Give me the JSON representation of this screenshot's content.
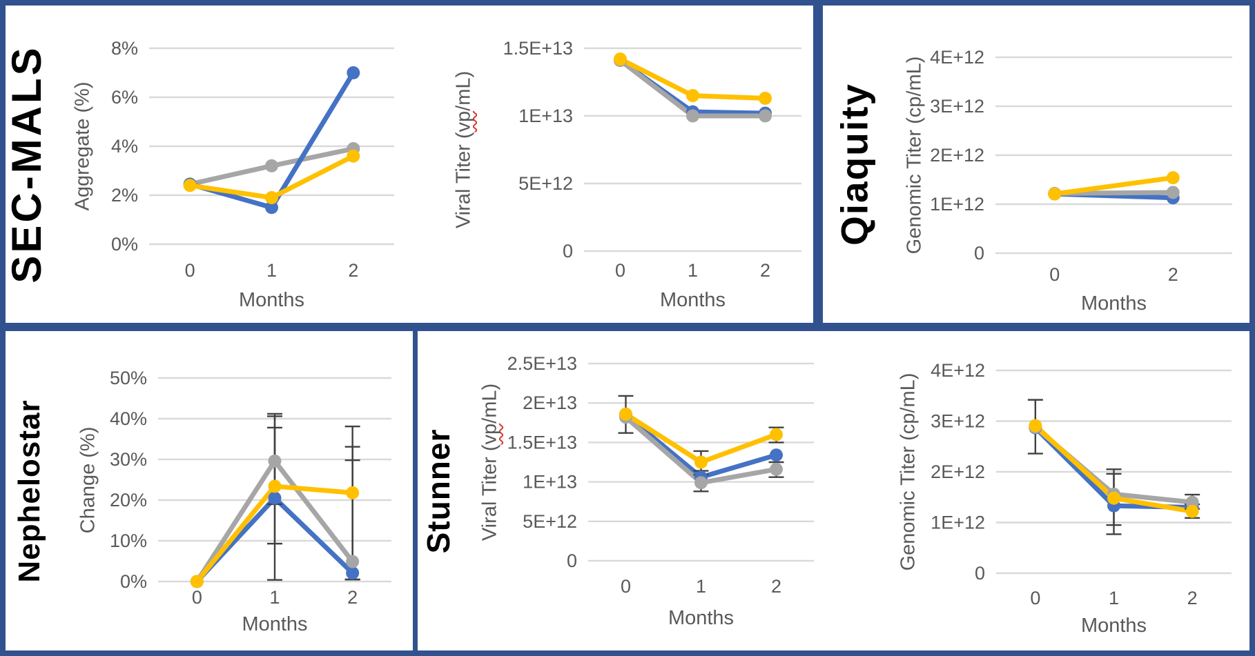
{
  "figure": {
    "description_visible_text_only": "Four bordered panels of stability line charts over months",
    "months_axis_label": "Months"
  },
  "colors": {
    "border_blue": "#31528F",
    "panel_background": "#FFFFFF",
    "series_blue": "#4472C4",
    "series_gray": "#A6A6A6",
    "series_yellow": "#FFC000",
    "gridline": "#D9D9D9",
    "axis_text": "#595959",
    "error_bar": "#404040",
    "panel_title_text": "#000000",
    "spellcheck_squiggle_red": "#D83A2E"
  },
  "panels": [
    {
      "title": "SEC-MALS"
    },
    {
      "title": "Qiaquity"
    },
    {
      "title": "Nephelostar"
    },
    {
      "title": "Stunner"
    }
  ],
  "chart_data": [
    {
      "id": "secmals-aggregate",
      "type": "line",
      "panel": "SEC-MALS",
      "xlabel": "Months",
      "ylabel": "Aggregate (%)",
      "x_categories": [
        "0",
        "1",
        "2"
      ],
      "ylim": [
        0,
        8
      ],
      "yticks": [
        {
          "value": 8,
          "label": "8%"
        },
        {
          "value": 6,
          "label": "6%"
        },
        {
          "value": 4,
          "label": "4%"
        },
        {
          "value": 2,
          "label": "2%"
        },
        {
          "value": 0,
          "label": "0%"
        }
      ],
      "grid": "horizontal",
      "legend": "none",
      "series": [
        {
          "name": "gray",
          "color": "#A6A6A6",
          "values": [
            2.45,
            3.2,
            3.9
          ]
        },
        {
          "name": "blue",
          "color": "#4472C4",
          "values": [
            2.45,
            1.5,
            7.0
          ]
        },
        {
          "name": "yellow",
          "color": "#FFC000",
          "values": [
            2.4,
            1.9,
            3.6
          ]
        }
      ]
    },
    {
      "id": "secmals-viral-titer",
      "type": "line",
      "panel": "SEC-MALS",
      "xlabel": "Months",
      "ylabel": "Viral Titer (vp/mL)",
      "ylabel_spellcheck_underline": "vp",
      "x_categories": [
        "0",
        "1",
        "2"
      ],
      "ylim": [
        0,
        15000000000000.0
      ],
      "yticks": [
        {
          "value": 15000000000000.0,
          "label": "1.5E+13"
        },
        {
          "value": 10000000000000.0,
          "label": "1E+13"
        },
        {
          "value": 5000000000000.0,
          "label": "5E+12"
        },
        {
          "value": 0,
          "label": "0"
        }
      ],
      "grid": "horizontal",
      "legend": "none",
      "series": [
        {
          "name": "blue",
          "color": "#4472C4",
          "values": [
            14100000000000.0,
            10300000000000.0,
            10200000000000.0
          ]
        },
        {
          "name": "gray",
          "color": "#A6A6A6",
          "values": [
            14100000000000.0,
            10000000000000.0,
            10000000000000.0
          ]
        },
        {
          "name": "yellow",
          "color": "#FFC000",
          "values": [
            14200000000000.0,
            11500000000000.0,
            11300000000000.0
          ]
        }
      ]
    },
    {
      "id": "qiaquity-genomic-titer",
      "type": "line",
      "panel": "Qiaquity",
      "xlabel": "Months",
      "ylabel": "Genomic Titer (cp/mL)",
      "x_categories": [
        "0",
        "2"
      ],
      "ylim": [
        0,
        4000000000000.0
      ],
      "yticks": [
        {
          "value": 4000000000000.0,
          "label": "4E+12"
        },
        {
          "value": 3000000000000.0,
          "label": "3E+12"
        },
        {
          "value": 2000000000000.0,
          "label": "2E+12"
        },
        {
          "value": 1000000000000.0,
          "label": "1E+12"
        },
        {
          "value": 0,
          "label": "0"
        }
      ],
      "grid": "horizontal",
      "legend": "none",
      "series": [
        {
          "name": "blue",
          "color": "#4472C4",
          "values": [
            1210000000000.0,
            1130000000000.0
          ]
        },
        {
          "name": "gray",
          "color": "#A6A6A6",
          "values": [
            1220000000000.0,
            1240000000000.0
          ]
        },
        {
          "name": "yellow",
          "color": "#FFC000",
          "values": [
            1210000000000.0,
            1540000000000.0
          ]
        }
      ]
    },
    {
      "id": "nephelostar-change",
      "type": "line",
      "panel": "Nephelostar",
      "xlabel": "Months",
      "ylabel": "Change (%)",
      "x_categories": [
        "0",
        "1",
        "2"
      ],
      "ylim": [
        0,
        50
      ],
      "yticks": [
        {
          "value": 50,
          "label": "50%"
        },
        {
          "value": 40,
          "label": "40%"
        },
        {
          "value": 30,
          "label": "30%"
        },
        {
          "value": 20,
          "label": "20%"
        },
        {
          "value": 10,
          "label": "10%"
        },
        {
          "value": 0,
          "label": "0%"
        }
      ],
      "grid": "horizontal",
      "legend": "none",
      "series": [
        {
          "name": "blue",
          "color": "#4472C4",
          "values": [
            0,
            20.5,
            2.1
          ],
          "error_bars": [
            null,
            [
              0.4,
              40.6
            ],
            [
              0.5,
              29.8
            ]
          ]
        },
        {
          "name": "gray",
          "color": "#A6A6A6",
          "values": [
            0,
            29.6,
            4.9
          ],
          "error_bars": [
            null,
            [
              19.0,
              41.2
            ],
            [
              0.5,
              38.1
            ]
          ]
        },
        {
          "name": "yellow",
          "color": "#FFC000",
          "values": [
            0,
            23.4,
            21.8
          ],
          "error_bars": [
            null,
            [
              9.3,
              37.8
            ],
            [
              0.5,
              33.1
            ]
          ]
        }
      ]
    },
    {
      "id": "stunner-viral-titer",
      "type": "line",
      "panel": "Stunner",
      "xlabel": "Months",
      "ylabel": "Viral Titer (vp/mL)",
      "ylabel_spellcheck_underline": "vp",
      "x_categories": [
        "0",
        "1",
        "2"
      ],
      "ylim": [
        0,
        25000000000000.0
      ],
      "yticks": [
        {
          "value": 25000000000000.0,
          "label": "2.5E+13"
        },
        {
          "value": 20000000000000.0,
          "label": "2E+13"
        },
        {
          "value": 15000000000000.0,
          "label": "1.5E+13"
        },
        {
          "value": 10000000000000.0,
          "label": "1E+13"
        },
        {
          "value": 5000000000000.0,
          "label": "5E+12"
        },
        {
          "value": 0,
          "label": "0"
        }
      ],
      "grid": "horizontal",
      "legend": "none",
      "series": [
        {
          "name": "blue",
          "color": "#4472C4",
          "values": [
            18500000000000.0,
            10600000000000.0,
            13400000000000.0
          ]
        },
        {
          "name": "gray",
          "color": "#A6A6A6",
          "values": [
            18200000000000.0,
            9900000000000.0,
            11600000000000.0
          ],
          "error_bars": [
            null,
            [
              8800000000000.0,
              10900000000000.0
            ],
            [
              10600000000000.0,
              12500000000000.0
            ]
          ]
        },
        {
          "name": "yellow",
          "color": "#FFC000",
          "values": [
            18600000000000.0,
            12500000000000.0,
            16000000000000.0
          ],
          "error_bars": [
            [
              16200000000000.0,
              20900000000000.0
            ],
            [
              11400000000000.0,
              13900000000000.0
            ],
            [
              15000000000000.0,
              16900000000000.0
            ]
          ]
        }
      ]
    },
    {
      "id": "stunner-genomic-titer",
      "type": "line",
      "panel": "Stunner",
      "xlabel": "Months",
      "ylabel": "Genomic Titer (cp/mL)",
      "x_categories": [
        "0",
        "1",
        "2"
      ],
      "ylim": [
        0,
        4000000000000.0
      ],
      "yticks": [
        {
          "value": 4000000000000.0,
          "label": "4E+12"
        },
        {
          "value": 3000000000000.0,
          "label": "3E+12"
        },
        {
          "value": 2000000000000.0,
          "label": "2E+12"
        },
        {
          "value": 1000000000000.0,
          "label": "1E+12"
        },
        {
          "value": 0,
          "label": "0"
        }
      ],
      "grid": "horizontal",
      "legend": "none",
      "series": [
        {
          "name": "blue",
          "color": "#4472C4",
          "values": [
            2870000000000.0,
            1330000000000.0,
            1300000000000.0
          ]
        },
        {
          "name": "gray",
          "color": "#A6A6A6",
          "values": [
            2880000000000.0,
            1560000000000.0,
            1400000000000.0
          ],
          "error_bars": [
            null,
            [
              950000000000.0,
              1960000000000.0
            ],
            [
              1270000000000.0,
              1550000000000.0
            ]
          ]
        },
        {
          "name": "yellow",
          "color": "#FFC000",
          "values": [
            2910000000000.0,
            1480000000000.0,
            1220000000000.0
          ],
          "error_bars": [
            [
              2360000000000.0,
              3420000000000.0
            ],
            [
              770000000000.0,
              2050000000000.0
            ],
            [
              1090000000000.0,
              1360000000000.0
            ]
          ]
        }
      ]
    }
  ]
}
